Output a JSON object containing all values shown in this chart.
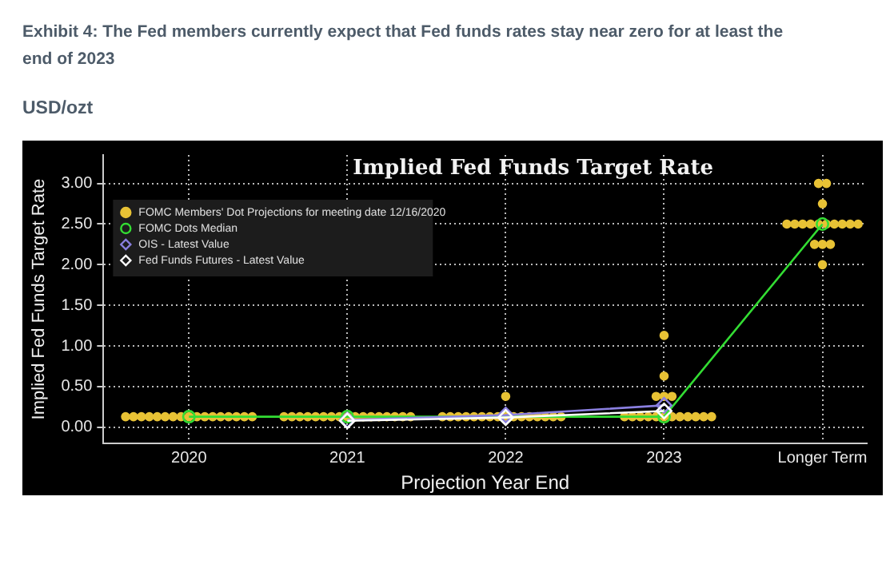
{
  "chart_data": {
    "type": "scatter",
    "title": "Exhibit 4: The Fed members currently expect that Fed funds rates stay near zero for at least the end of 2023",
    "subtitle": "USD/ozt",
    "annotations": [
      "Implied Fed Funds Target Rate"
    ],
    "xlabel": "Projection Year End",
    "ylabel": "Implied Fed Funds Target Rate",
    "xlim": [
      2019.46,
      2024.28
    ],
    "xticks": [
      2020,
      2021,
      2022,
      2023,
      {
        "value": 2024,
        "label": "Longer Term"
      }
    ],
    "ylim": [
      -0.2,
      3.35
    ],
    "yticks": [
      {
        "value": 0,
        "label": "0.00"
      },
      {
        "value": 0.5,
        "label": "0.50"
      },
      {
        "value": 1,
        "label": "1.00"
      },
      {
        "value": 1.5,
        "label": "1.50"
      },
      {
        "value": 2,
        "label": "2.00"
      },
      {
        "value": 2.5,
        "label": "2.50"
      },
      {
        "value": 3,
        "label": "3.00"
      }
    ],
    "grid": true,
    "legend": "top left",
    "series": [
      {
        "name": "FOMC Members' Dot Projections for meeting date 12/16/2020",
        "type": "scatter",
        "marker": "circle",
        "color": "#e8c235",
        "x": [
          2019.6,
          2019.65,
          2019.7,
          2019.75,
          2019.8,
          2019.85,
          2019.9,
          2019.95,
          2020,
          2020.05,
          2020.1,
          2020.15,
          2020.2,
          2020.25,
          2020.3,
          2020.35,
          2020.4,
          2020.6,
          2020.65,
          2020.7,
          2020.75,
          2020.8,
          2020.85,
          2020.9,
          2020.95,
          2021,
          2021.05,
          2021.1,
          2021.15,
          2021.2,
          2021.25,
          2021.3,
          2021.35,
          2021.4,
          2021.6,
          2021.65,
          2021.7,
          2021.75,
          2021.8,
          2021.85,
          2021.9,
          2021.95,
          2022,
          2022.05,
          2022.1,
          2022.15,
          2022.2,
          2022.25,
          2022.3,
          2022.35,
          2022,
          2022.75,
          2022.8,
          2022.85,
          2022.9,
          2022.95,
          2023,
          2023.05,
          2023.1,
          2023.15,
          2023.2,
          2023.25,
          2023.3,
          2022.95,
          2023,
          2023.05,
          2023,
          2023,
          2023.975,
          2024.025,
          2024,
          2023.775,
          2023.825,
          2023.875,
          2023.925,
          2023.975,
          2024.025,
          2024.075,
          2024.125,
          2024.175,
          2024.225,
          2023.95,
          2024,
          2024.05,
          2024
        ],
        "values": [
          0.13,
          0.13,
          0.13,
          0.13,
          0.13,
          0.13,
          0.13,
          0.13,
          0.13,
          0.13,
          0.13,
          0.13,
          0.13,
          0.13,
          0.13,
          0.13,
          0.13,
          0.13,
          0.13,
          0.13,
          0.13,
          0.13,
          0.13,
          0.13,
          0.13,
          0.13,
          0.13,
          0.13,
          0.13,
          0.13,
          0.13,
          0.13,
          0.13,
          0.13,
          0.13,
          0.13,
          0.13,
          0.13,
          0.13,
          0.13,
          0.13,
          0.13,
          0.13,
          0.13,
          0.13,
          0.13,
          0.13,
          0.13,
          0.13,
          0.13,
          0.38,
          0.13,
          0.13,
          0.13,
          0.13,
          0.13,
          0.13,
          0.13,
          0.13,
          0.13,
          0.13,
          0.13,
          0.13,
          0.38,
          0.38,
          0.38,
          0.63,
          1.13,
          3,
          3,
          2.75,
          2.5,
          2.5,
          2.5,
          2.5,
          2.5,
          2.5,
          2.5,
          2.5,
          2.5,
          2.5,
          2.25,
          2.25,
          2.25,
          2
        ]
      },
      {
        "name": "FOMC Dots Median",
        "type": "line",
        "marker": "circle",
        "color": "#33dd33",
        "x": [
          2020,
          2021,
          2022,
          2023,
          2024
        ],
        "values": [
          0.13,
          0.13,
          0.13,
          0.13,
          2.5
        ]
      },
      {
        "name": "OIS - Latest Value",
        "type": "line",
        "marker": "diamond",
        "color": "#8a7fe0",
        "x": [
          2021,
          2022,
          2023
        ],
        "values": [
          0.09,
          0.15,
          0.27
        ]
      },
      {
        "name": "Fed Funds Futures - Latest Value",
        "type": "line",
        "marker": "diamond",
        "color": "#ffffff",
        "x": [
          2021,
          2022,
          2023
        ],
        "values": [
          0.08,
          0.12,
          0.2
        ]
      }
    ]
  }
}
